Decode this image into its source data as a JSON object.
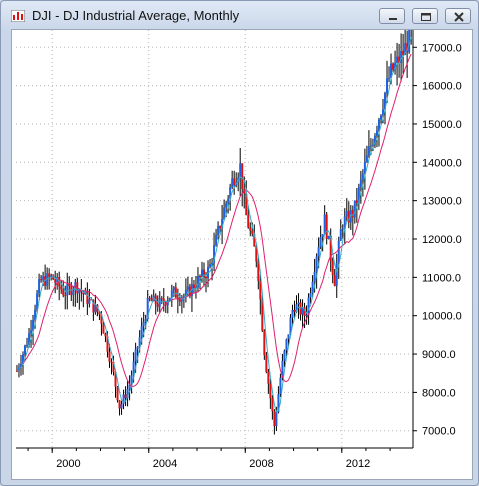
{
  "window": {
    "title": "DJI - DJ Industrial Average, Monthly",
    "buttons": [
      "minimize-icon",
      "restore-icon",
      "close-icon"
    ]
  },
  "colors": {
    "up_candle": "#1f5fe0",
    "down_candle": "#e01010",
    "wick": "#000000",
    "ma_short": "#38a8c8",
    "ma_long": "#e0206e",
    "grid": "#b8b8b8"
  },
  "chart_data": {
    "type": "line",
    "title": "DJI - DJ Industrial Average, Monthly",
    "xlabel": "",
    "ylabel": "",
    "x_tick_labels": [
      "2000",
      "2004",
      "2008",
      "2012"
    ],
    "y_tick_labels": [
      "7000.0",
      "8000.0",
      "9000.0",
      "10000.0",
      "11000.0",
      "12000.0",
      "13000.0",
      "14000.0",
      "15000.0",
      "16000.0",
      "17000.0"
    ],
    "ylim": [
      6550,
      17450
    ],
    "xlim": [
      1998.5,
      2014.95
    ],
    "grid": true,
    "legend": "none",
    "series": [
      {
        "values_description": "monthly close anchors",
        "x": [
          1998.5,
          1999.0,
          1999.5,
          2000.0,
          2000.5,
          2001.0,
          2001.5,
          2002.0,
          2002.5,
          2002.8,
          2003.2,
          2003.5,
          2004.0,
          2004.5,
          2005.0,
          2005.5,
          2006.0,
          2006.5,
          2007.0,
          2007.5,
          2007.8,
          2008.0,
          2008.5,
          2008.8,
          2009.2,
          2009.5,
          2010.0,
          2010.5,
          2011.0,
          2011.3,
          2011.7,
          2012.0,
          2012.5,
          2013.0,
          2013.5,
          2014.0,
          2014.5,
          2014.9
        ],
        "y": [
          8500,
          9400,
          10900,
          11000,
          10600,
          10800,
          10400,
          10000,
          8600,
          7600,
          8200,
          9100,
          10400,
          10300,
          10600,
          10500,
          10900,
          11200,
          12500,
          13600,
          13900,
          12700,
          11400,
          9000,
          7100,
          8600,
          10300,
          10000,
          11800,
          12500,
          10900,
          12400,
          12700,
          14000,
          15100,
          16300,
          16800,
          17400
        ]
      }
    ]
  }
}
